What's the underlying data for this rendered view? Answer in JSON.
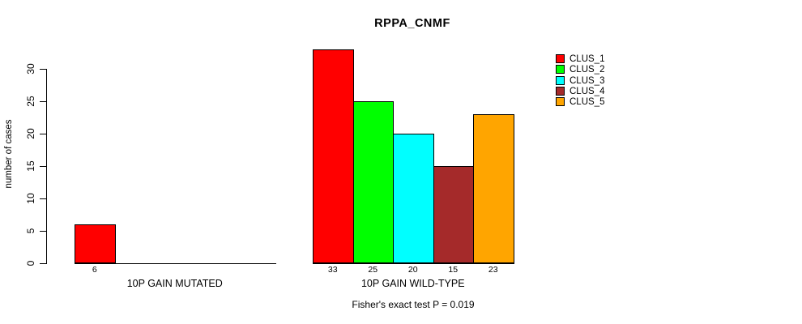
{
  "chart_data": {
    "type": "bar",
    "title": "RPPA_CNMF",
    "xlabel": "",
    "ylabel": "number of cases",
    "ylim": [
      0,
      33
    ],
    "yticks": [
      0,
      5,
      10,
      15,
      20,
      25,
      30
    ],
    "grid": false,
    "legend_position": "top-right",
    "categories": [
      "10P GAIN MUTATED",
      "10P GAIN WILD-TYPE"
    ],
    "series": [
      {
        "name": "CLUS_1",
        "color": "#FF0000",
        "values": [
          6,
          33
        ]
      },
      {
        "name": "CLUS_2",
        "color": "#00FF00",
        "values": [
          0,
          25
        ]
      },
      {
        "name": "CLUS_3",
        "color": "#00FFFF",
        "values": [
          0,
          20
        ]
      },
      {
        "name": "CLUS_4",
        "color": "#A52A2A",
        "values": [
          0,
          15
        ]
      },
      {
        "name": "CLUS_5",
        "color": "#FFA500",
        "values": [
          0,
          23
        ]
      }
    ],
    "bar_value_labels": [
      [
        6
      ],
      [
        33,
        25,
        20,
        15,
        23
      ]
    ],
    "annotation": "Fisher's exact test P = 0.019"
  },
  "colors": {
    "axis": "#000000",
    "background": "#FFFFFF",
    "text": "#000000"
  }
}
